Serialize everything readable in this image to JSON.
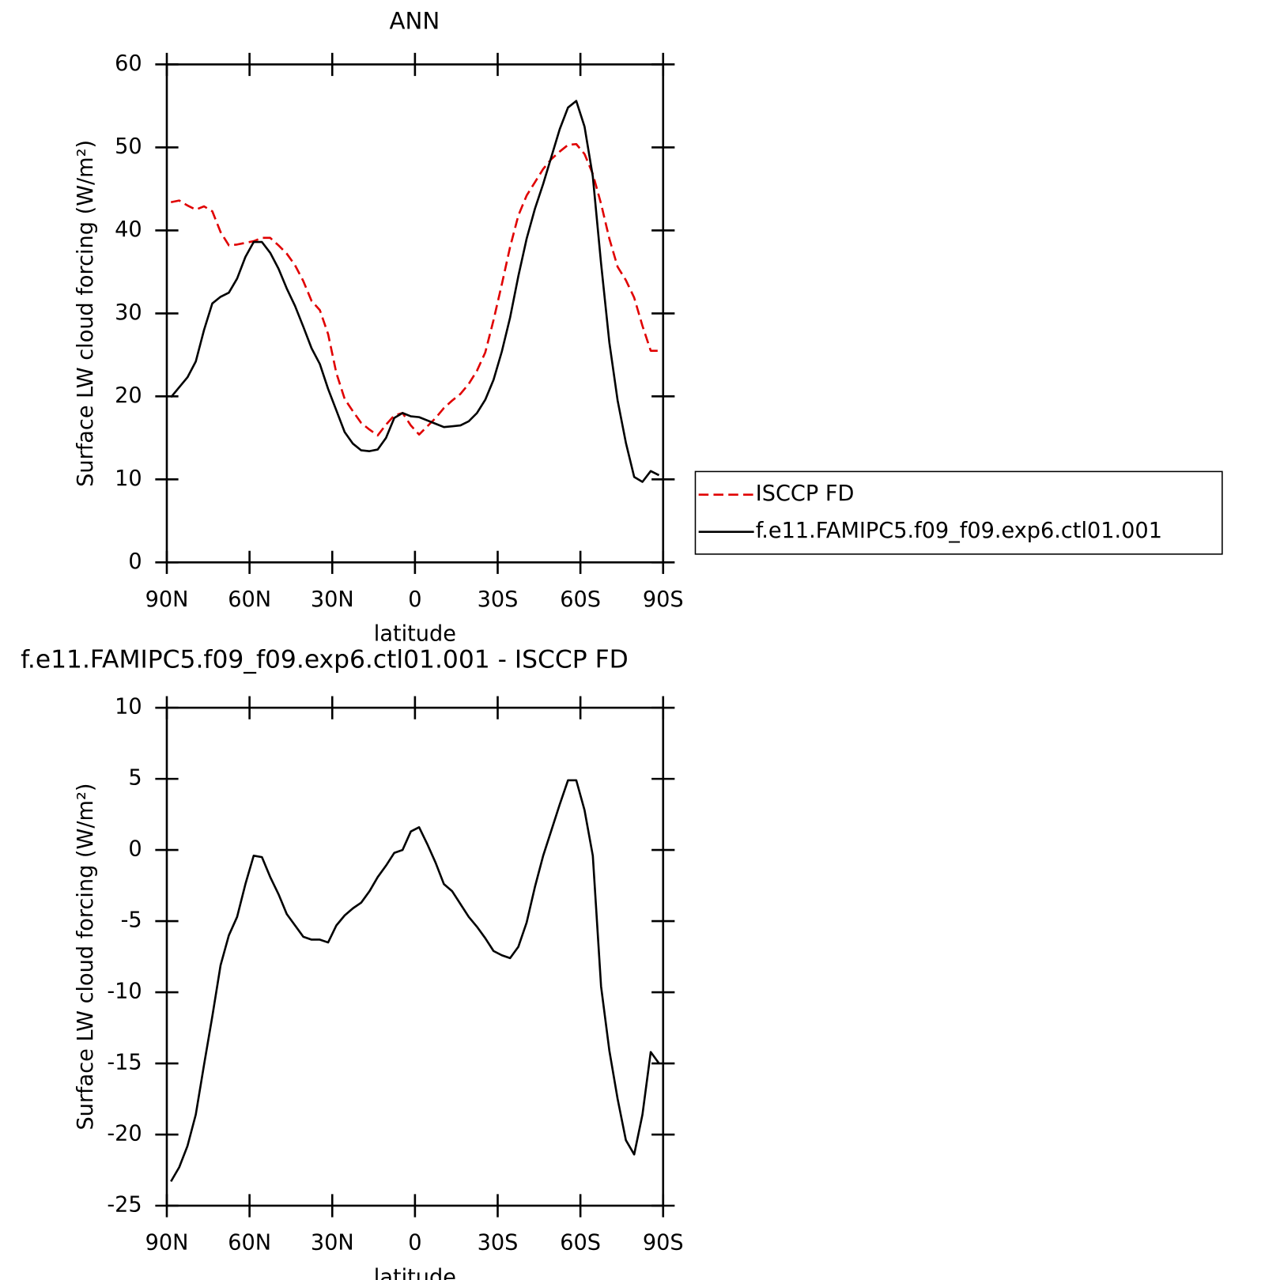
{
  "chart_data": [
    {
      "type": "line",
      "title": "ANN",
      "xlabel": "latitude",
      "ylabel": "Surface LW cloud forcing (W/m²)",
      "x": [
        88.5,
        85.5,
        82.5,
        79.5,
        76.5,
        73.5,
        70.5,
        67.5,
        64.5,
        61.5,
        58.5,
        55.5,
        52.5,
        49.5,
        46.5,
        43.5,
        40.5,
        37.5,
        34.5,
        31.5,
        28.5,
        25.5,
        22.5,
        19.5,
        16.5,
        13.5,
        10.5,
        7.5,
        4.5,
        1.5,
        -1.5,
        -4.5,
        -7.5,
        -10.5,
        -13.5,
        -16.5,
        -19.5,
        -22.5,
        -25.5,
        -28.5,
        -31.5,
        -34.5,
        -37.5,
        -40.5,
        -43.5,
        -46.5,
        -49.5,
        -52.5,
        -55.5,
        -58.5,
        -61.5,
        -64.5,
        -67.5,
        -70.5,
        -73.5,
        -76.5,
        -79.5,
        -82.5,
        -85.5,
        -88.5
      ],
      "series": [
        {
          "name": "ISCCP FD",
          "color": "#e00000",
          "linestyle": "dashed",
          "values": [
            43.4,
            43.6,
            43,
            42.5,
            42.9,
            42.3,
            39.8,
            38.2,
            38.3,
            38.5,
            38.7,
            39.1,
            39.1,
            38.2,
            37.2,
            35.8,
            33.9,
            31.5,
            30.4,
            27.5,
            22.8,
            19.7,
            18.2,
            16.8,
            16,
            15.3,
            16.6,
            17.7,
            18,
            16.5,
            15.4,
            16.4,
            17.4,
            18.6,
            19.5,
            20.3,
            21.5,
            23.1,
            25.3,
            29.2,
            33.5,
            38,
            41.8,
            44.2,
            45.8,
            47.4,
            48.6,
            49.5,
            50.3,
            50.4,
            49.2,
            46.8,
            43.2,
            39,
            35.6,
            34,
            31.9,
            28.5,
            25.5,
            25.5
          ]
        },
        {
          "name": "f.e11.FAMIPC5.f09_f09.exp6.ctl01.001",
          "color": "#000000",
          "linestyle": "solid",
          "values": [
            19.9,
            21.1,
            22.3,
            24.2,
            28,
            31.2,
            32,
            32.5,
            34.2,
            36.8,
            38.6,
            38.6,
            37.3,
            35.4,
            33,
            30.9,
            28.4,
            25.8,
            23.9,
            20.9,
            18.3,
            15.7,
            14.3,
            13.5,
            13.4,
            13.6,
            15,
            17.4,
            18,
            17.6,
            17.5,
            17.1,
            16.7,
            16.3,
            16.4,
            16.5,
            17,
            18,
            19.6,
            22,
            25.4,
            29.5,
            34.5,
            39,
            42.6,
            45.6,
            48.9,
            52.2,
            54.8,
            55.6,
            52.5,
            46.5,
            36,
            26.5,
            19.5,
            14.4,
            10.3,
            9.7,
            11,
            10.5
          ]
        }
      ],
      "xlim": [
        90,
        -90
      ],
      "xticks": [
        {
          "value": 90,
          "label": "90N"
        },
        {
          "value": 60,
          "label": "60N"
        },
        {
          "value": 30,
          "label": "30N"
        },
        0,
        {
          "value": -30,
          "label": "30S"
        },
        {
          "value": -60,
          "label": "60S"
        },
        {
          "value": -90,
          "label": "90S"
        }
      ],
      "ylim": [
        0,
        60
      ],
      "yticks": [
        0,
        10,
        20,
        30,
        40,
        50,
        60
      ],
      "legend": "right"
    },
    {
      "type": "line",
      "title": "f.e11.FAMIPC5.f09_f09.exp6.ctl01.001 - ISCCP FD",
      "xlabel": "latitude",
      "ylabel": "Surface LW cloud forcing (W/m²)",
      "x": [
        88.5,
        85.5,
        82.5,
        79.5,
        76.5,
        73.5,
        70.5,
        67.5,
        64.5,
        61.5,
        58.5,
        55.5,
        52.5,
        49.5,
        46.5,
        43.5,
        40.5,
        37.5,
        34.5,
        31.5,
        28.5,
        25.5,
        22.5,
        19.5,
        16.5,
        13.5,
        10.5,
        7.5,
        4.5,
        1.5,
        -1.5,
        -4.5,
        -7.5,
        -10.5,
        -13.5,
        -16.5,
        -19.5,
        -22.5,
        -25.5,
        -28.5,
        -31.5,
        -34.5,
        -37.5,
        -40.5,
        -43.5,
        -46.5,
        -49.5,
        -52.5,
        -55.5,
        -58.5,
        -61.5,
        -64.5,
        -67.5,
        -70.5,
        -73.5,
        -76.5,
        -79.5,
        -82.5,
        -85.5,
        -88.5
      ],
      "series": [
        {
          "color": "#000000",
          "linestyle": "solid",
          "values": [
            -23.3,
            -22.3,
            -20.8,
            -18.6,
            -15.1,
            -11.7,
            -8.1,
            -6,
            -4.7,
            -2.4,
            -0.4,
            -0.5,
            -1.9,
            -3.1,
            -4.5,
            -5.3,
            -6.1,
            -6.3,
            -6.3,
            -6.5,
            -5.3,
            -4.6,
            -4.1,
            -3.7,
            -2.9,
            -1.9,
            -1.1,
            -0.2,
            0,
            1.3,
            1.6,
            0.4,
            -0.9,
            -2.4,
            -2.9,
            -3.8,
            -4.7,
            -5.4,
            -6.2,
            -7.1,
            -7.4,
            -7.6,
            -6.8,
            -5.1,
            -2.6,
            -0.4,
            1.4,
            3.2,
            4.9,
            4.9,
            2.8,
            -0.4,
            -9.6,
            -14.1,
            -17.5,
            -20.4,
            -21.4,
            -18.6,
            -14.2,
            -15
          ]
        }
      ],
      "xlim": [
        90,
        -90
      ],
      "xticks": [
        {
          "value": 90,
          "label": "90N"
        },
        {
          "value": 60,
          "label": "60N"
        },
        {
          "value": 30,
          "label": "30N"
        },
        0,
        {
          "value": -30,
          "label": "30S"
        },
        {
          "value": -60,
          "label": "60S"
        },
        {
          "value": -90,
          "label": "90S"
        }
      ],
      "ylim": [
        -25,
        10
      ],
      "yticks": [
        -25,
        -20,
        -15,
        -10,
        -5,
        0,
        5,
        10
      ]
    }
  ]
}
